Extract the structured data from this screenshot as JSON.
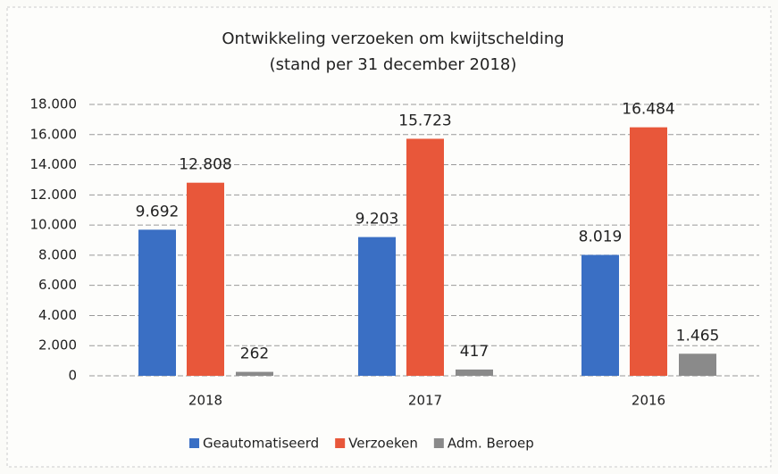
{
  "chart_data": {
    "type": "bar",
    "title": "Ontwikkeling verzoeken om kwijtschelding",
    "subtitle": "(stand per 31 december 2018)",
    "categories": [
      "2018",
      "2017",
      "2016"
    ],
    "series": [
      {
        "name": "Geautomatiseerd",
        "color": "#3a6fc4",
        "values": [
          9692,
          9203,
          8019
        ],
        "value_labels": [
          "9.692",
          "9.203",
          "8.019"
        ]
      },
      {
        "name": "Verzoeken",
        "color": "#e8573a",
        "values": [
          12808,
          15723,
          16484
        ],
        "value_labels": [
          "12.808",
          "15.723",
          "16.484"
        ]
      },
      {
        "name": "Adm. Beroep",
        "color": "#8a8a8a",
        "values": [
          262,
          417,
          1465
        ],
        "value_labels": [
          "262",
          "417",
          "1.465"
        ]
      }
    ],
    "ylim": [
      0,
      18000
    ],
    "yticks": [
      0,
      {
        "value": 2000,
        "label": "2.000"
      },
      {
        "value": 4000,
        "label": "4.000"
      },
      {
        "value": 6000,
        "label": "6.000"
      },
      {
        "value": 8000,
        "label": "8.000"
      },
      {
        "value": 10000,
        "label": "10.000"
      },
      {
        "value": 12000,
        "label": "12.000"
      },
      {
        "value": 14000,
        "label": "14.000"
      },
      {
        "value": 16000,
        "label": "16.000"
      },
      {
        "value": 18000,
        "label": "18.000"
      }
    ],
    "grid": true,
    "legend": "bottom"
  }
}
